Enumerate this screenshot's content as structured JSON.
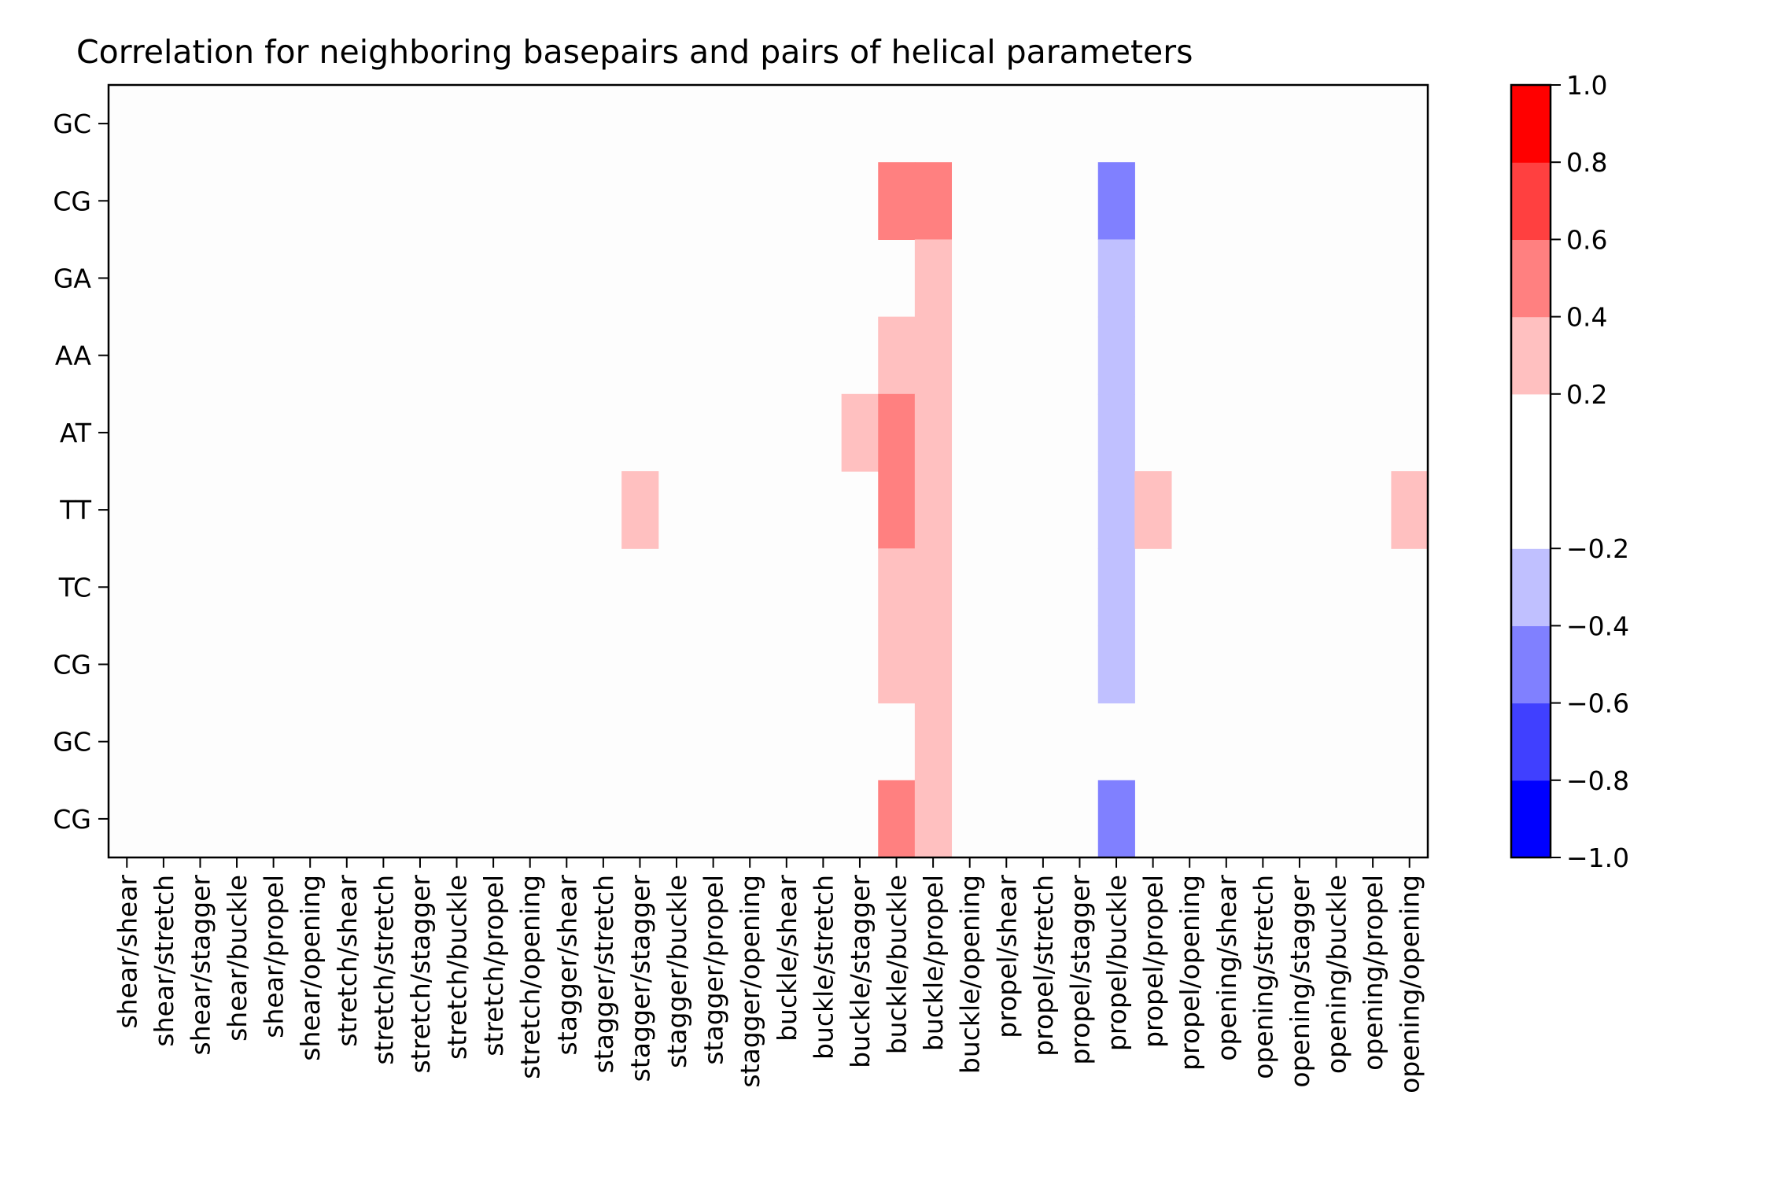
{
  "chart_data": {
    "type": "heatmap",
    "title": "Correlation for neighboring basepairs and pairs of helical parameters",
    "xlabel": "",
    "ylabel": "",
    "x_categories": [
      "shear/shear",
      "shear/stretch",
      "shear/stagger",
      "shear/buckle",
      "shear/propel",
      "shear/opening",
      "stretch/shear",
      "stretch/stretch",
      "stretch/stagger",
      "stretch/buckle",
      "stretch/propel",
      "stretch/opening",
      "stagger/shear",
      "stagger/stretch",
      "stagger/stagger",
      "stagger/buckle",
      "stagger/propel",
      "stagger/opening",
      "buckle/shear",
      "buckle/stretch",
      "buckle/stagger",
      "buckle/buckle",
      "buckle/propel",
      "buckle/opening",
      "propel/shear",
      "propel/stretch",
      "propel/stagger",
      "propel/buckle",
      "propel/propel",
      "propel/opening",
      "opening/shear",
      "opening/stretch",
      "opening/stagger",
      "opening/buckle",
      "opening/propel",
      "opening/opening"
    ],
    "y_categories": [
      "GC",
      "CG",
      "GA",
      "AA",
      "AT",
      "TT",
      "TC",
      "CG",
      "GC",
      "CG"
    ],
    "cells": [
      {
        "row": 1,
        "col": 21,
        "value": 0.5
      },
      {
        "row": 1,
        "col": 22,
        "value": 0.5
      },
      {
        "row": 1,
        "col": 27,
        "value": -0.5
      },
      {
        "row": 2,
        "col": 22,
        "value": 0.3
      },
      {
        "row": 2,
        "col": 27,
        "value": -0.3
      },
      {
        "row": 3,
        "col": 21,
        "value": 0.3
      },
      {
        "row": 3,
        "col": 22,
        "value": 0.3
      },
      {
        "row": 3,
        "col": 27,
        "value": -0.3
      },
      {
        "row": 4,
        "col": 20,
        "value": 0.3
      },
      {
        "row": 4,
        "col": 21,
        "value": 0.5
      },
      {
        "row": 4,
        "col": 22,
        "value": 0.3
      },
      {
        "row": 4,
        "col": 27,
        "value": -0.3
      },
      {
        "row": 5,
        "col": 14,
        "value": 0.3
      },
      {
        "row": 5,
        "col": 21,
        "value": 0.5
      },
      {
        "row": 5,
        "col": 22,
        "value": 0.3
      },
      {
        "row": 5,
        "col": 27,
        "value": -0.3
      },
      {
        "row": 5,
        "col": 28,
        "value": 0.3
      },
      {
        "row": 5,
        "col": 35,
        "value": 0.3
      },
      {
        "row": 6,
        "col": 21,
        "value": 0.3
      },
      {
        "row": 6,
        "col": 22,
        "value": 0.3
      },
      {
        "row": 6,
        "col": 27,
        "value": -0.3
      },
      {
        "row": 7,
        "col": 21,
        "value": 0.3
      },
      {
        "row": 7,
        "col": 22,
        "value": 0.3
      },
      {
        "row": 7,
        "col": 27,
        "value": -0.3
      },
      {
        "row": 8,
        "col": 22,
        "value": 0.3
      },
      {
        "row": 9,
        "col": 21,
        "value": 0.5
      },
      {
        "row": 9,
        "col": 22,
        "value": 0.3
      },
      {
        "row": 9,
        "col": 27,
        "value": -0.5
      }
    ],
    "colorbar": {
      "vmin": -1.0,
      "vmax": 1.0,
      "bounds": [
        -1.0,
        -0.8,
        -0.6,
        -0.4,
        -0.2,
        0.2,
        0.4,
        0.6,
        0.8,
        1.0
      ],
      "colors": [
        "#0000ff",
        "#4040ff",
        "#8080ff",
        "#c0c0ff",
        "#ffffff",
        "#ffc0c0",
        "#ff8080",
        "#ff4040",
        "#ff0000"
      ],
      "ticks": [
        1.0,
        0.8,
        0.6,
        0.4,
        0.2,
        -0.2,
        -0.4,
        -0.6,
        -0.8,
        -1.0
      ],
      "tick_labels": [
        "1.0",
        "0.8",
        "0.6",
        "0.4",
        "0.2",
        "−0.2",
        "−0.4",
        "−0.6",
        "−0.8",
        "−1.0"
      ]
    },
    "grid": false,
    "background_color": "#fdfdfd"
  }
}
